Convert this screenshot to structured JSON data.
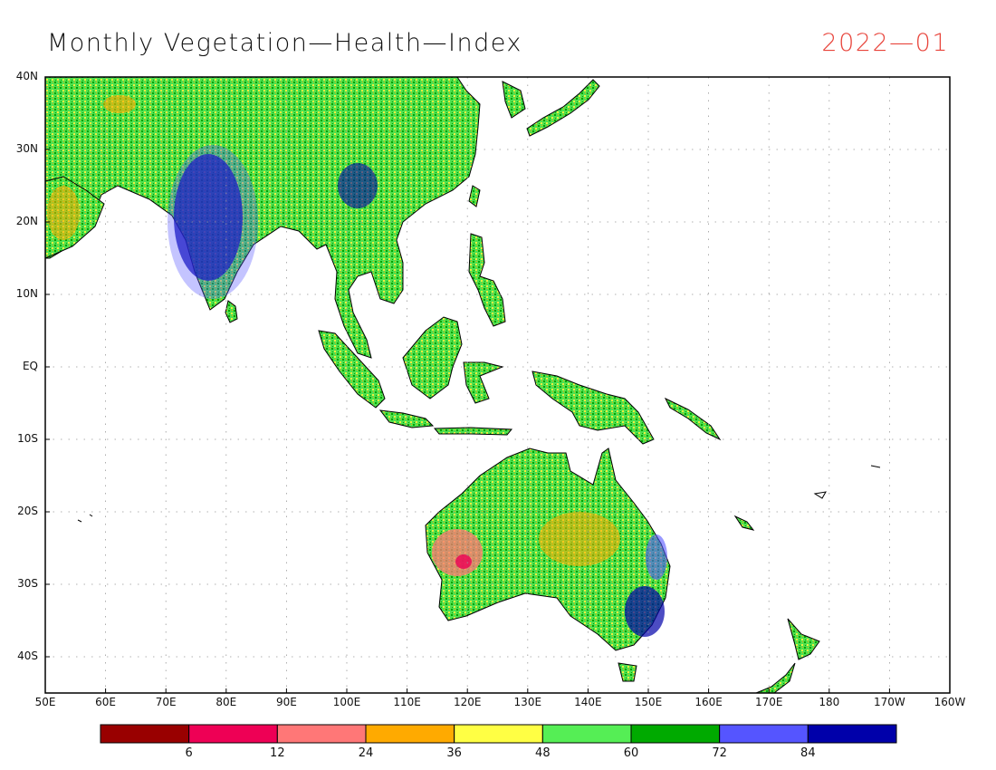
{
  "header": {
    "title": "Monthly Vegetation—Health—Index",
    "date": "2022—01",
    "date_color": "#e8453c"
  },
  "map": {
    "lon_range": [
      50,
      200
    ],
    "lat_range": [
      -45,
      40
    ],
    "y_labels": [
      {
        "lat": 40,
        "text": "40N"
      },
      {
        "lat": 30,
        "text": "30N"
      },
      {
        "lat": 20,
        "text": "20N"
      },
      {
        "lat": 10,
        "text": "10N"
      },
      {
        "lat": 0,
        "text": "EQ"
      },
      {
        "lat": -10,
        "text": "10S"
      },
      {
        "lat": -20,
        "text": "20S"
      },
      {
        "lat": -30,
        "text": "30S"
      },
      {
        "lat": -40,
        "text": "40S"
      }
    ],
    "x_labels": [
      {
        "lon": 50,
        "text": "50E"
      },
      {
        "lon": 60,
        "text": "60E"
      },
      {
        "lon": 70,
        "text": "70E"
      },
      {
        "lon": 80,
        "text": "80E"
      },
      {
        "lon": 90,
        "text": "90E"
      },
      {
        "lon": 100,
        "text": "100E"
      },
      {
        "lon": 110,
        "text": "110E"
      },
      {
        "lon": 120,
        "text": "120E"
      },
      {
        "lon": 130,
        "text": "130E"
      },
      {
        "lon": 140,
        "text": "140E"
      },
      {
        "lon": 150,
        "text": "150E"
      },
      {
        "lon": 160,
        "text": "160E"
      },
      {
        "lon": 170,
        "text": "170E"
      },
      {
        "lon": 180,
        "text": "180"
      },
      {
        "lon": 190,
        "text": "170W"
      },
      {
        "lon": 200,
        "text": "160W"
      }
    ],
    "grid": true
  },
  "colorbar": {
    "colors": [
      "#990000",
      "#ee0055",
      "#ff7777",
      "#ffaa00",
      "#ffff44",
      "#55ee55",
      "#00aa00",
      "#5555ff",
      "#0000aa"
    ],
    "ticks": [
      "6",
      "12",
      "24",
      "36",
      "48",
      "60",
      "72",
      "84"
    ]
  }
}
